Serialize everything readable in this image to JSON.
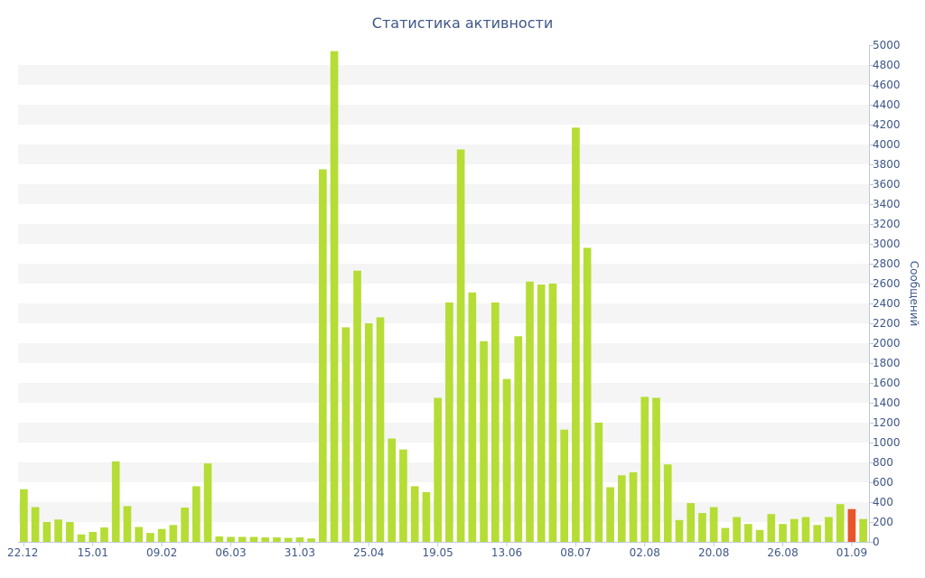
{
  "chart_data": {
    "type": "bar",
    "title": "Статистика активности",
    "xlabel": "",
    "ylabel": "Сообщений",
    "ylim": [
      0,
      5000
    ],
    "y_ticks": [
      0,
      200,
      400,
      600,
      800,
      1000,
      1200,
      1400,
      1600,
      1800,
      2000,
      2200,
      2400,
      2600,
      2800,
      3000,
      3200,
      3400,
      3600,
      3800,
      4000,
      4200,
      4400,
      4600,
      4800,
      5000
    ],
    "x_tick_labels": [
      {
        "index": 0,
        "label": "22.12"
      },
      {
        "index": 6,
        "label": "15.01"
      },
      {
        "index": 12,
        "label": "09.02"
      },
      {
        "index": 18,
        "label": "06.03"
      },
      {
        "index": 24,
        "label": "31.03"
      },
      {
        "index": 30,
        "label": "25.04"
      },
      {
        "index": 36,
        "label": "19.05"
      },
      {
        "index": 42,
        "label": "13.06"
      },
      {
        "index": 48,
        "label": "08.07"
      },
      {
        "index": 54,
        "label": "02.08"
      },
      {
        "index": 60,
        "label": "20.08"
      },
      {
        "index": 66,
        "label": "26.08"
      },
      {
        "index": 72,
        "label": "01.09"
      }
    ],
    "values": [
      530,
      350,
      200,
      225,
      200,
      75,
      100,
      145,
      810,
      360,
      150,
      90,
      130,
      170,
      345,
      560,
      790,
      55,
      50,
      50,
      50,
      45,
      45,
      40,
      45,
      35,
      3750,
      4940,
      2160,
      2730,
      2200,
      2260,
      1040,
      930,
      560,
      500,
      1450,
      2410,
      3950,
      2510,
      2020,
      2410,
      1640,
      2070,
      2620,
      2590,
      2600,
      1130,
      4170,
      2960,
      1200,
      550,
      670,
      700,
      1460,
      1450,
      780,
      220,
      390,
      290,
      350,
      140,
      250,
      180,
      120,
      280,
      180,
      230,
      250,
      170,
      250,
      380,
      330,
      230
    ],
    "highlight_index": 72,
    "colors": {
      "bar": "#b5dd35",
      "highlight": "#e8552a",
      "text": "#3e5688",
      "band": "#f5f5f5"
    },
    "grid": "horizontal-bands",
    "legend": "none",
    "y_axis_position": "right"
  }
}
